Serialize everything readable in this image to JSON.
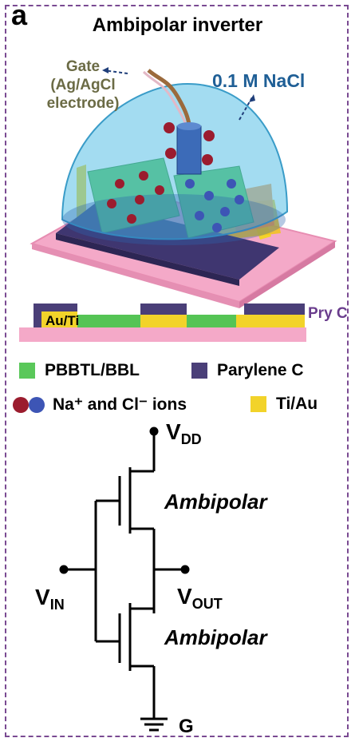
{
  "panel_letter": "a",
  "title": "Ambipolar inverter",
  "labels": {
    "gate": [
      "Gate",
      "(Ag/AgCl",
      "electrode)"
    ],
    "electrolyte": "0.1 M NaCl"
  },
  "cross_section": {
    "contact_label": "Au/Ti",
    "encapsulation_label": "Pry C"
  },
  "legend": [
    {
      "label": "PBBTL/BBL",
      "color": "#5ac85a"
    },
    {
      "label": "Parylene C",
      "color": "#4a3f78"
    },
    {
      "label": "Na⁺ and Cl⁻ ions",
      "colors": [
        "#9b1c2e",
        "#3d55b5"
      ]
    },
    {
      "label": "Ti/Au",
      "color": "#f2d32a"
    }
  ],
  "circuit": {
    "vdd_main": "V",
    "vdd_sub": "DD",
    "vin_main": "V",
    "vin_sub": "IN",
    "vout_main": "V",
    "vout_sub": "OUT",
    "ground": "G",
    "top_transistor": "Ambipolar",
    "bottom_transistor": "Ambipolar"
  }
}
